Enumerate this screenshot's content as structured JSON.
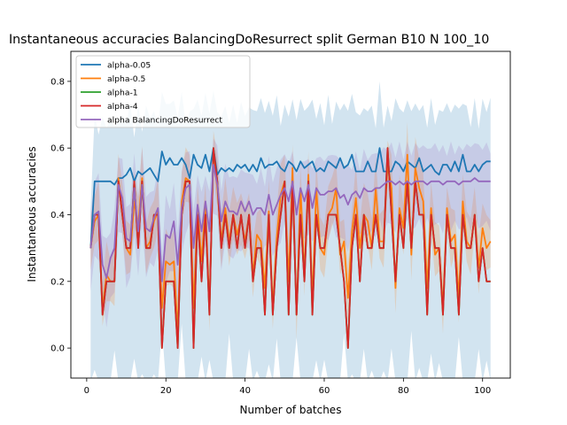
{
  "chart_data": {
    "type": "line",
    "title": "Instantaneous accuracies BalancingDoResurrect split German B10 N 100_10",
    "xlabel": "Number of batches",
    "ylabel": "Instantaneous accuracies",
    "xlim": [
      -4,
      107
    ],
    "ylim": [
      -0.09,
      0.89
    ],
    "xticks": [
      0,
      20,
      40,
      60,
      80,
      100
    ],
    "yticks": [
      0.0,
      0.2,
      0.4,
      0.6,
      0.8
    ],
    "grid": false,
    "legend_position": "upper-left",
    "x": [
      1,
      2,
      3,
      4,
      5,
      6,
      7,
      8,
      9,
      10,
      11,
      12,
      13,
      14,
      15,
      16,
      17,
      18,
      19,
      20,
      21,
      22,
      23,
      24,
      25,
      26,
      27,
      28,
      29,
      30,
      31,
      32,
      33,
      34,
      35,
      36,
      37,
      38,
      39,
      40,
      41,
      42,
      43,
      44,
      45,
      46,
      47,
      48,
      49,
      50,
      51,
      52,
      53,
      54,
      55,
      56,
      57,
      58,
      59,
      60,
      61,
      62,
      63,
      64,
      65,
      66,
      67,
      68,
      69,
      70,
      71,
      72,
      73,
      74,
      75,
      76,
      77,
      78,
      79,
      80,
      81,
      82,
      83,
      84,
      85,
      86,
      87,
      88,
      89,
      90,
      91,
      92,
      93,
      94,
      95,
      96,
      97,
      98,
      99,
      100,
      101,
      102
    ],
    "series": [
      {
        "name": "alpha-0.05",
        "color": "#1f77b4",
        "band": [
          0.2,
          0.8
        ],
        "values": [
          0.3,
          0.5,
          0.5,
          0.5,
          0.5,
          0.5,
          0.49,
          0.51,
          0.51,
          0.52,
          0.54,
          0.5,
          0.53,
          0.52,
          0.53,
          0.54,
          0.52,
          0.5,
          0.59,
          0.55,
          0.57,
          0.55,
          0.55,
          0.57,
          0.55,
          0.51,
          0.58,
          0.55,
          0.54,
          0.58,
          0.53,
          0.6,
          0.52,
          0.54,
          0.53,
          0.54,
          0.53,
          0.55,
          0.54,
          0.55,
          0.53,
          0.55,
          0.53,
          0.57,
          0.54,
          0.55,
          0.55,
          0.56,
          0.54,
          0.53,
          0.56,
          0.55,
          0.53,
          0.56,
          0.54,
          0.55,
          0.56,
          0.53,
          0.54,
          0.53,
          0.56,
          0.55,
          0.54,
          0.57,
          0.54,
          0.55,
          0.58,
          0.53,
          0.53,
          0.53,
          0.56,
          0.53,
          0.53,
          0.6,
          0.53,
          0.53,
          0.53,
          0.56,
          0.55,
          0.53,
          0.56,
          0.55,
          0.54,
          0.57,
          0.53,
          0.54,
          0.55,
          0.53,
          0.52,
          0.55,
          0.55,
          0.53,
          0.56,
          0.53,
          0.58,
          0.53,
          0.53,
          0.55,
          0.53,
          0.55,
          0.56,
          0.56
        ]
      },
      {
        "name": "alpha-0.5",
        "color": "#ff7f0e",
        "band": [
          0.1,
          0.08
        ],
        "values": [
          0.3,
          0.38,
          0.4,
          0.12,
          0.22,
          0.2,
          0.2,
          0.51,
          0.4,
          0.3,
          0.28,
          0.44,
          0.37,
          0.51,
          0.3,
          0.32,
          0.38,
          0.41,
          0.12,
          0.26,
          0.25,
          0.26,
          0.05,
          0.44,
          0.51,
          0.5,
          0.12,
          0.42,
          0.26,
          0.43,
          0.12,
          0.58,
          0.48,
          0.32,
          0.42,
          0.32,
          0.4,
          0.34,
          0.39,
          0.32,
          0.4,
          0.22,
          0.34,
          0.32,
          0.18,
          0.41,
          0.12,
          0.33,
          0.46,
          0.5,
          0.2,
          0.54,
          0.1,
          0.48,
          0.22,
          0.52,
          0.14,
          0.48,
          0.3,
          0.28,
          0.4,
          0.42,
          0.48,
          0.28,
          0.32,
          0.15,
          0.35,
          0.45,
          0.3,
          0.4,
          0.38,
          0.3,
          0.48,
          0.32,
          0.32,
          0.55,
          0.48,
          0.18,
          0.42,
          0.36,
          0.58,
          0.28,
          0.54,
          0.48,
          0.44,
          0.18,
          0.42,
          0.28,
          0.3,
          0.12,
          0.42,
          0.32,
          0.34,
          0.15,
          0.44,
          0.32,
          0.3,
          0.4,
          0.24,
          0.36,
          0.3,
          0.32
        ]
      },
      {
        "name": "alpha-1",
        "color": "#2ca02c",
        "band": [
          0.0,
          0.0
        ],
        "values": [
          0.3,
          0.4,
          0.4,
          0.1,
          0.2,
          0.2,
          0.2,
          0.5,
          0.4,
          0.3,
          0.3,
          0.5,
          0.3,
          0.5,
          0.3,
          0.3,
          0.4,
          0.4,
          0.0,
          0.2,
          0.2,
          0.2,
          0.0,
          0.4,
          0.5,
          0.5,
          0.0,
          0.4,
          0.2,
          0.4,
          0.1,
          0.6,
          0.5,
          0.3,
          0.4,
          0.3,
          0.4,
          0.3,
          0.4,
          0.3,
          0.4,
          0.2,
          0.3,
          0.3,
          0.1,
          0.4,
          0.1,
          0.3,
          0.4,
          0.5,
          0.1,
          0.5,
          0.1,
          0.4,
          0.2,
          0.5,
          0.1,
          0.4,
          0.3,
          0.3,
          0.4,
          0.4,
          0.4,
          0.3,
          0.2,
          0.0,
          0.3,
          0.4,
          0.2,
          0.4,
          0.3,
          0.3,
          0.4,
          0.3,
          0.3,
          0.6,
          0.4,
          0.2,
          0.4,
          0.3,
          0.5,
          0.3,
          0.5,
          0.4,
          0.4,
          0.1,
          0.4,
          0.3,
          0.3,
          0.1,
          0.4,
          0.3,
          0.3,
          0.1,
          0.4,
          0.3,
          0.3,
          0.4,
          0.2,
          0.3,
          0.2,
          0.2
        ]
      },
      {
        "name": "alpha-4",
        "color": "#d62728",
        "band": [
          0.0,
          0.0
        ],
        "values": [
          0.3,
          0.4,
          0.4,
          0.1,
          0.2,
          0.2,
          0.2,
          0.5,
          0.4,
          0.3,
          0.3,
          0.5,
          0.3,
          0.5,
          0.3,
          0.3,
          0.4,
          0.4,
          0.0,
          0.2,
          0.2,
          0.2,
          0.0,
          0.4,
          0.5,
          0.5,
          0.0,
          0.4,
          0.2,
          0.4,
          0.1,
          0.6,
          0.5,
          0.3,
          0.4,
          0.3,
          0.4,
          0.3,
          0.4,
          0.3,
          0.4,
          0.2,
          0.3,
          0.3,
          0.1,
          0.4,
          0.1,
          0.3,
          0.4,
          0.5,
          0.1,
          0.5,
          0.1,
          0.4,
          0.2,
          0.5,
          0.1,
          0.4,
          0.3,
          0.3,
          0.4,
          0.4,
          0.4,
          0.3,
          0.2,
          0.0,
          0.3,
          0.4,
          0.2,
          0.4,
          0.3,
          0.3,
          0.4,
          0.3,
          0.3,
          0.6,
          0.4,
          0.2,
          0.4,
          0.3,
          0.5,
          0.3,
          0.5,
          0.4,
          0.4,
          0.1,
          0.4,
          0.3,
          0.3,
          0.1,
          0.4,
          0.3,
          0.3,
          0.1,
          0.4,
          0.3,
          0.3,
          0.4,
          0.2,
          0.3,
          0.2,
          0.2
        ]
      },
      {
        "name": "alpha BalancingDoResurrect",
        "color": "#9467bd",
        "band": [
          0.12,
          0.15
        ],
        "values": [
          0.3,
          0.4,
          0.41,
          0.25,
          0.21,
          0.27,
          0.3,
          0.49,
          0.45,
          0.33,
          0.32,
          0.48,
          0.35,
          0.49,
          0.36,
          0.35,
          0.39,
          0.42,
          0.2,
          0.34,
          0.33,
          0.38,
          0.25,
          0.42,
          0.48,
          0.49,
          0.3,
          0.43,
          0.35,
          0.44,
          0.35,
          0.55,
          0.49,
          0.38,
          0.44,
          0.41,
          0.41,
          0.4,
          0.44,
          0.41,
          0.44,
          0.4,
          0.42,
          0.42,
          0.4,
          0.46,
          0.4,
          0.43,
          0.46,
          0.48,
          0.44,
          0.5,
          0.4,
          0.48,
          0.44,
          0.49,
          0.42,
          0.48,
          0.46,
          0.46,
          0.47,
          0.47,
          0.48,
          0.45,
          0.46,
          0.43,
          0.46,
          0.47,
          0.45,
          0.48,
          0.47,
          0.47,
          0.48,
          0.48,
          0.49,
          0.5,
          0.5,
          0.49,
          0.5,
          0.49,
          0.5,
          0.49,
          0.5,
          0.5,
          0.5,
          0.49,
          0.5,
          0.5,
          0.5,
          0.49,
          0.5,
          0.5,
          0.5,
          0.49,
          0.5,
          0.5,
          0.5,
          0.51,
          0.5,
          0.5,
          0.5,
          0.5
        ]
      }
    ]
  }
}
